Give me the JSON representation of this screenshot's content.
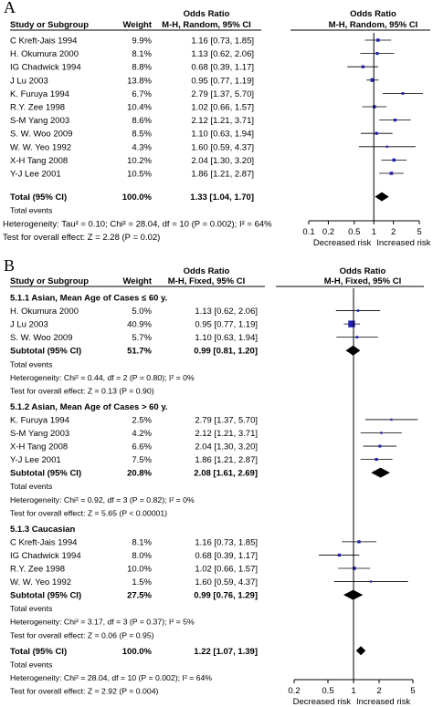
{
  "panels": [
    {
      "label": "A",
      "headers": {
        "study": "Study or Subgroup",
        "weight": "Weight",
        "or_top": "Odds Ratio",
        "or_bottom": "M-H, Random, 95% CI",
        "plot_top": "Odds Ratio",
        "plot_bottom": "M-H, Random, 95% CI"
      },
      "rows": [
        {
          "kind": "study",
          "name": "C Kreft-Jais 1994",
          "weight": "9.9%",
          "ci": "1.16 [0.73, 1.85]",
          "or": 1.16,
          "lo": 0.73,
          "hi": 1.85,
          "w": 9.9
        },
        {
          "kind": "study",
          "name": "H. Okumura 2000",
          "weight": "8.1%",
          "ci": "1.13 [0.62, 2.06]",
          "or": 1.13,
          "lo": 0.62,
          "hi": 2.06,
          "w": 8.1
        },
        {
          "kind": "study",
          "name": "IG Chadwick 1994",
          "weight": "8.8%",
          "ci": "0.68 [0.39, 1.17]",
          "or": 0.68,
          "lo": 0.39,
          "hi": 1.17,
          "w": 8.8
        },
        {
          "kind": "study",
          "name": "J Lu 2003",
          "weight": "13.8%",
          "ci": "0.95 [0.77, 1.19]",
          "or": 0.95,
          "lo": 0.77,
          "hi": 1.19,
          "w": 13.8
        },
        {
          "kind": "study",
          "name": "K. Furuya 1994",
          "weight": "6.7%",
          "ci": "2.79 [1.37, 5.70]",
          "or": 2.79,
          "lo": 1.37,
          "hi": 5.7,
          "w": 6.7
        },
        {
          "kind": "study",
          "name": "R.Y. Zee 1998",
          "weight": "10.4%",
          "ci": "1.02 [0.66, 1.57]",
          "or": 1.02,
          "lo": 0.66,
          "hi": 1.57,
          "w": 10.4
        },
        {
          "kind": "study",
          "name": "S-M Yang 2003",
          "weight": "8.6%",
          "ci": "2.12 [1.21, 3.71]",
          "or": 2.12,
          "lo": 1.21,
          "hi": 3.71,
          "w": 8.6
        },
        {
          "kind": "study",
          "name": "S. W. Woo 2009",
          "weight": "8.5%",
          "ci": "1.10 [0.63, 1.94]",
          "or": 1.1,
          "lo": 0.63,
          "hi": 1.94,
          "w": 8.5
        },
        {
          "kind": "study",
          "name": "W. W. Yeo 1992",
          "weight": "4.3%",
          "ci": "1.60 [0.59, 4.37]",
          "or": 1.6,
          "lo": 0.59,
          "hi": 4.37,
          "w": 4.3
        },
        {
          "kind": "study",
          "name": "X-H Tang 2008",
          "weight": "10.2%",
          "ci": "2.04 [1.30, 3.20]",
          "or": 2.04,
          "lo": 1.3,
          "hi": 3.2,
          "w": 10.2
        },
        {
          "kind": "study",
          "name": "Y-J Lee 2001",
          "weight": "10.5%",
          "ci": "1.86 [1.21, 2.87]",
          "or": 1.86,
          "lo": 1.21,
          "hi": 2.87,
          "w": 10.5
        },
        {
          "kind": "gap"
        },
        {
          "kind": "total",
          "name": "Total (95% CI)",
          "weight": "100.0%",
          "ci": "1.33 [1.04, 1.70]",
          "or": 1.33,
          "lo": 1.04,
          "hi": 1.7
        },
        {
          "kind": "note",
          "text": "Total events"
        },
        {
          "kind": "note",
          "text": "Heterogeneity: Tau² = 0.10; Chi² = 28.04, df = 10 (P = 0.002); I² = 64%",
          "flush": true
        },
        {
          "kind": "note",
          "text": "Test for overall effect: Z = 2.28 (P = 0.02)",
          "flush": true
        }
      ],
      "axis": {
        "ticks": [
          0.1,
          0.2,
          0.5,
          1,
          2,
          5
        ],
        "tick_labels": [
          "0.1",
          "0.2",
          "0.5",
          "1",
          "2",
          "5"
        ],
        "left_label": "Decreased risk",
        "right_label": "Increased risk"
      }
    },
    {
      "label": "B",
      "headers": {
        "study": "Study or Subgroup",
        "weight": "Weight",
        "or_top": "Odds Ratio",
        "or_bottom": "M-H, Fixed, 95% CI",
        "plot_top": "Odds Ratio",
        "plot_bottom": "M-H, Fixed, 95% CI"
      },
      "rows": [
        {
          "kind": "group",
          "text": "5.1.1 Asian, Mean Age of Cases ≤ 60 y."
        },
        {
          "kind": "study",
          "name": "H. Okumura 2000",
          "weight": "5.0%",
          "ci": "1.13 [0.62, 2.06]",
          "or": 1.13,
          "lo": 0.62,
          "hi": 2.06,
          "w": 5.0
        },
        {
          "kind": "study",
          "name": "J Lu 2003",
          "weight": "40.9%",
          "ci": "0.95 [0.77, 1.19]",
          "or": 0.95,
          "lo": 0.77,
          "hi": 1.19,
          "w": 40.9
        },
        {
          "kind": "study",
          "name": "S. W. Woo 2009",
          "weight": "5.7%",
          "ci": "1.10 [0.63, 1.94]",
          "or": 1.1,
          "lo": 0.63,
          "hi": 1.94,
          "w": 5.7
        },
        {
          "kind": "subtotal",
          "name": "Subtotal (95% CI)",
          "weight": "51.7%",
          "ci": "0.99 [0.81, 1.20]",
          "or": 0.99,
          "lo": 0.81,
          "hi": 1.2
        },
        {
          "kind": "note",
          "text": "Total events"
        },
        {
          "kind": "note",
          "text": "Heterogeneity: Chi² = 0.44, df = 2 (P = 0.80); I² = 0%"
        },
        {
          "kind": "note",
          "text": "Test for overall effect: Z = 0.13 (P = 0.90)"
        },
        {
          "kind": "gap"
        },
        {
          "kind": "group",
          "text": "5.1.2 Asian, Mean Age of Cases > 60 y."
        },
        {
          "kind": "study",
          "name": "K. Furuya 1994",
          "weight": "2.5%",
          "ci": "2.79 [1.37, 5.70]",
          "or": 2.79,
          "lo": 1.37,
          "hi": 5.7,
          "w": 2.5
        },
        {
          "kind": "study",
          "name": "S-M Yang 2003",
          "weight": "4.2%",
          "ci": "2.12 [1.21, 3.71]",
          "or": 2.12,
          "lo": 1.21,
          "hi": 3.71,
          "w": 4.2
        },
        {
          "kind": "study",
          "name": "X-H Tang 2008",
          "weight": "6.6%",
          "ci": "2.04 [1.30, 3.20]",
          "or": 2.04,
          "lo": 1.3,
          "hi": 3.2,
          "w": 6.6
        },
        {
          "kind": "study",
          "name": "Y-J Lee 2001",
          "weight": "7.5%",
          "ci": "1.86 [1.21, 2.87]",
          "or": 1.86,
          "lo": 1.21,
          "hi": 2.87,
          "w": 7.5
        },
        {
          "kind": "subtotal",
          "name": "Subtotal (95% CI)",
          "weight": "20.8%",
          "ci": "2.08 [1.61, 2.69]",
          "or": 2.08,
          "lo": 1.61,
          "hi": 2.69
        },
        {
          "kind": "note",
          "text": "Total events"
        },
        {
          "kind": "note",
          "text": "Heterogeneity: Chi² = 0.92, df = 3 (P = 0.82); I² = 0%"
        },
        {
          "kind": "note",
          "text": "Test for overall effect: Z = 5.65 (P < 0.00001)"
        },
        {
          "kind": "gap"
        },
        {
          "kind": "group",
          "text": "5.1.3 Caucasian"
        },
        {
          "kind": "study",
          "name": "C Kreft-Jais 1994",
          "weight": "8.1%",
          "ci": "1.16 [0.73, 1.85]",
          "or": 1.16,
          "lo": 0.73,
          "hi": 1.85,
          "w": 8.1
        },
        {
          "kind": "study",
          "name": "IG Chadwick 1994",
          "weight": "8.0%",
          "ci": "0.68 [0.39, 1.17]",
          "or": 0.68,
          "lo": 0.39,
          "hi": 1.17,
          "w": 8.0
        },
        {
          "kind": "study",
          "name": "R.Y. Zee 1998",
          "weight": "10.0%",
          "ci": "1.02 [0.66, 1.57]",
          "or": 1.02,
          "lo": 0.66,
          "hi": 1.57,
          "w": 10.0
        },
        {
          "kind": "study",
          "name": "W. W. Yeo 1992",
          "weight": "1.5%",
          "ci": "1.60 [0.59, 4.37]",
          "or": 1.6,
          "lo": 0.59,
          "hi": 4.37,
          "w": 1.5
        },
        {
          "kind": "subtotal",
          "name": "Subtotal (95% CI)",
          "weight": "27.5%",
          "ci": "0.99 [0.76, 1.29]",
          "or": 0.99,
          "lo": 0.76,
          "hi": 1.29
        },
        {
          "kind": "note",
          "text": "Total events"
        },
        {
          "kind": "note",
          "text": "Heterogeneity: Chi² = 3.17, df = 3 (P = 0.37); I² = 5%"
        },
        {
          "kind": "note",
          "text": "Test for overall effect: Z = 0.06 (P = 0.95)"
        },
        {
          "kind": "gap"
        },
        {
          "kind": "total",
          "name": "Total (95% CI)",
          "weight": "100.0%",
          "ci": "1.22 [1.07, 1.39]",
          "or": 1.22,
          "lo": 1.07,
          "hi": 1.39
        },
        {
          "kind": "note",
          "text": "Total events"
        },
        {
          "kind": "note",
          "text": "Heterogeneity: Chi² = 28.04, df = 10 (P = 0.002); I² = 64%"
        },
        {
          "kind": "note",
          "text": "Test for overall effect: Z = 2.92 (P = 0.004)"
        }
      ],
      "axis": {
        "ticks": [
          0.2,
          0.5,
          1,
          2,
          5
        ],
        "tick_labels": [
          "0.2",
          "0.5",
          "1",
          "2",
          "5"
        ],
        "left_label": "Decreased risk",
        "right_label": "Increased risk"
      }
    }
  ],
  "colors": {
    "marker": "#1f1fb4",
    "line": "#000000",
    "diamond": "#000000"
  },
  "chart_data": [
    {
      "type": "forest",
      "scale": "log",
      "ylabel": "Study or Subgroup",
      "xlim": [
        0.1,
        5
      ],
      "series": [
        {
          "name": "Odds Ratio (M-H, Random, 95% CI)",
          "points": [
            {
              "study": "C Kreft-Jais 1994",
              "or": 1.16,
              "lo": 0.73,
              "hi": 1.85,
              "weight": 9.9
            },
            {
              "study": "H. Okumura 2000",
              "or": 1.13,
              "lo": 0.62,
              "hi": 2.06,
              "weight": 8.1
            },
            {
              "study": "IG Chadwick 1994",
              "or": 0.68,
              "lo": 0.39,
              "hi": 1.17,
              "weight": 8.8
            },
            {
              "study": "J Lu 2003",
              "or": 0.95,
              "lo": 0.77,
              "hi": 1.19,
              "weight": 13.8
            },
            {
              "study": "K. Furuya 1994",
              "or": 2.79,
              "lo": 1.37,
              "hi": 5.7,
              "weight": 6.7
            },
            {
              "study": "R.Y. Zee 1998",
              "or": 1.02,
              "lo": 0.66,
              "hi": 1.57,
              "weight": 10.4
            },
            {
              "study": "S-M Yang 2003",
              "or": 2.12,
              "lo": 1.21,
              "hi": 3.71,
              "weight": 8.6
            },
            {
              "study": "S. W. Woo 2009",
              "or": 1.1,
              "lo": 0.63,
              "hi": 1.94,
              "weight": 8.5
            },
            {
              "study": "W. W. Yeo 1992",
              "or": 1.6,
              "lo": 0.59,
              "hi": 4.37,
              "weight": 4.3
            },
            {
              "study": "X-H Tang 2008",
              "or": 2.04,
              "lo": 1.3,
              "hi": 3.2,
              "weight": 10.2
            },
            {
              "study": "Y-J Lee 2001",
              "or": 1.86,
              "lo": 1.21,
              "hi": 2.87,
              "weight": 10.5
            },
            {
              "study": "Total (95% CI)",
              "or": 1.33,
              "lo": 1.04,
              "hi": 1.7,
              "weight": 100.0
            }
          ]
        }
      ]
    },
    {
      "type": "forest",
      "scale": "log",
      "ylabel": "Study or Subgroup",
      "xlim": [
        0.2,
        5
      ],
      "series": [
        {
          "name": "Odds Ratio (M-H, Fixed, 95% CI)",
          "points": [
            {
              "study": "H. Okumura 2000",
              "group": "5.1.1",
              "or": 1.13,
              "lo": 0.62,
              "hi": 2.06,
              "weight": 5.0
            },
            {
              "study": "J Lu 2003",
              "group": "5.1.1",
              "or": 0.95,
              "lo": 0.77,
              "hi": 1.19,
              "weight": 40.9
            },
            {
              "study": "S. W. Woo 2009",
              "group": "5.1.1",
              "or": 1.1,
              "lo": 0.63,
              "hi": 1.94,
              "weight": 5.7
            },
            {
              "study": "Subtotal 5.1.1",
              "or": 0.99,
              "lo": 0.81,
              "hi": 1.2,
              "weight": 51.7
            },
            {
              "study": "K. Furuya 1994",
              "group": "5.1.2",
              "or": 2.79,
              "lo": 1.37,
              "hi": 5.7,
              "weight": 2.5
            },
            {
              "study": "S-M Yang 2003",
              "group": "5.1.2",
              "or": 2.12,
              "lo": 1.21,
              "hi": 3.71,
              "weight": 4.2
            },
            {
              "study": "X-H Tang 2008",
              "group": "5.1.2",
              "or": 2.04,
              "lo": 1.3,
              "hi": 3.2,
              "weight": 6.6
            },
            {
              "study": "Y-J Lee 2001",
              "group": "5.1.2",
              "or": 1.86,
              "lo": 1.21,
              "hi": 2.87,
              "weight": 7.5
            },
            {
              "study": "Subtotal 5.1.2",
              "or": 2.08,
              "lo": 1.61,
              "hi": 2.69,
              "weight": 20.8
            },
            {
              "study": "C Kreft-Jais 1994",
              "group": "5.1.3",
              "or": 1.16,
              "lo": 0.73,
              "hi": 1.85,
              "weight": 8.1
            },
            {
              "study": "IG Chadwick 1994",
              "group": "5.1.3",
              "or": 0.68,
              "lo": 0.39,
              "hi": 1.17,
              "weight": 8.0
            },
            {
              "study": "R.Y. Zee 1998",
              "group": "5.1.3",
              "or": 1.02,
              "lo": 0.66,
              "hi": 1.57,
              "weight": 10.0
            },
            {
              "study": "W. W. Yeo 1992",
              "group": "5.1.3",
              "or": 1.6,
              "lo": 0.59,
              "hi": 4.37,
              "weight": 1.5
            },
            {
              "study": "Subtotal 5.1.3",
              "or": 0.99,
              "lo": 0.76,
              "hi": 1.29,
              "weight": 27.5
            },
            {
              "study": "Total (95% CI)",
              "or": 1.22,
              "lo": 1.07,
              "hi": 1.39,
              "weight": 100.0
            }
          ]
        }
      ]
    }
  ]
}
